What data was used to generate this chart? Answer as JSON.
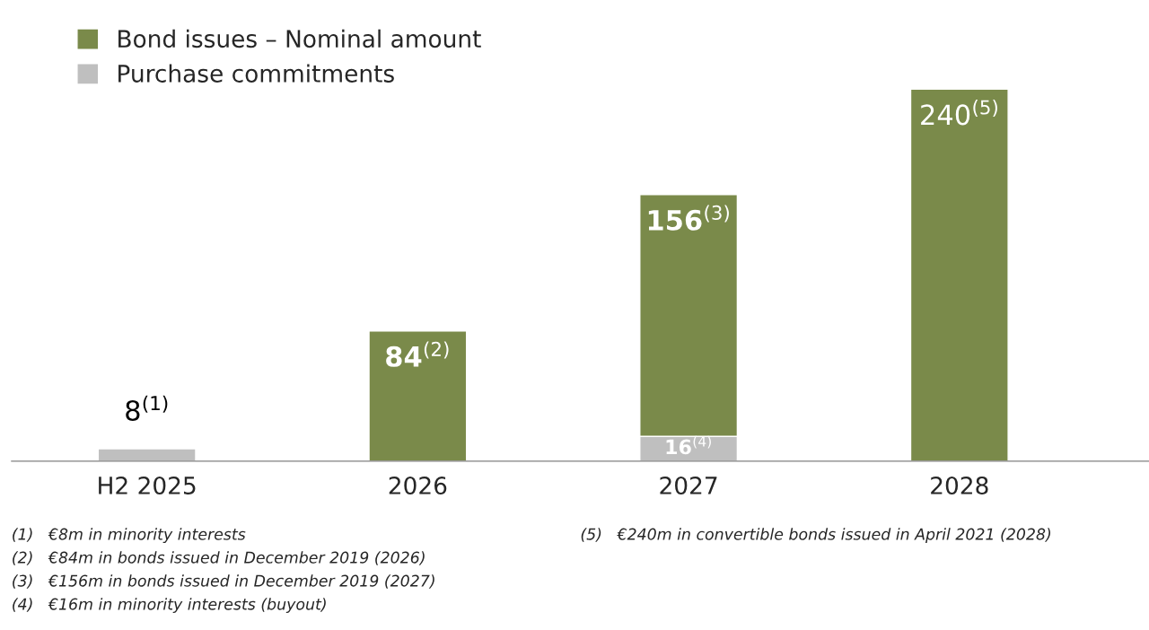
{
  "chart_data": {
    "type": "bar",
    "stacked": true,
    "categories": [
      "H2 2025",
      "2026",
      "2027",
      "2028"
    ],
    "series": [
      {
        "name": "Purchase commitments",
        "color": "#bfbfbf",
        "values": [
          8,
          null,
          16,
          null
        ],
        "value_labels": [
          "8$^{(1)}$",
          null,
          "16$^{(4)}$",
          null
        ]
      },
      {
        "name": "Bond issues – Nominal amount",
        "color": "#7a8a4a",
        "values": [
          null,
          84,
          156,
          240
        ],
        "value_labels": [
          null,
          "84$^{(2)}$",
          "156$^{(3)}$",
          "240$^{(5)}$"
        ]
      }
    ],
    "legend": "top left",
    "annotations": [
      "(1)   €8m in minority interests",
      "(2)   €84m in bonds issued in December 2019 (2026)",
      "(3)   €156m in bonds issued in December 2019 (2027)",
      "(4)   €16m in minority interests (buyout)",
      "(5)   €240m in convertible bonds issued in April 2021 (2028)"
    ]
  }
}
